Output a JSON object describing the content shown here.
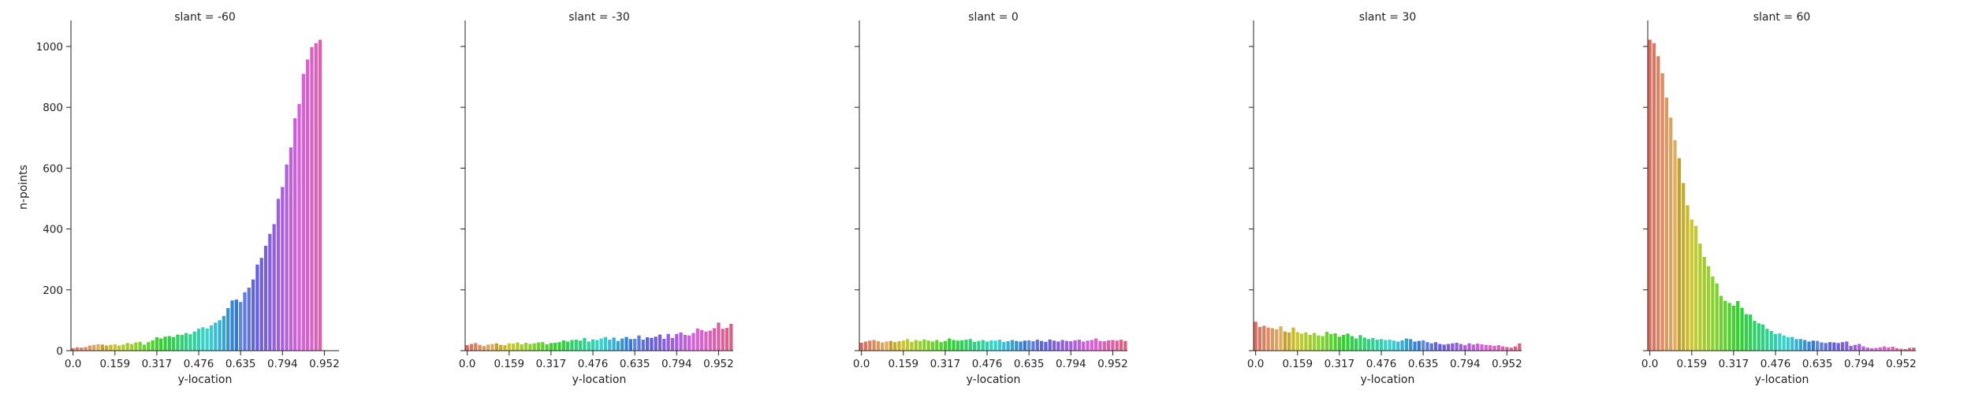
{
  "chart_data": {
    "type": "bar",
    "facet_variable": "slant",
    "ylabel": "n-points",
    "xlabel": "y-location",
    "xtick_labels": [
      "0.0",
      "0.159",
      "0.317",
      "0.476",
      "0.635",
      "0.794",
      "0.952"
    ],
    "ylim": [
      0,
      1075
    ],
    "yticks": [
      0,
      200,
      400,
      600,
      800,
      1000
    ],
    "shared_y": true,
    "grid": false,
    "bins": 64,
    "bin_width": 0.015873,
    "palette": "husl (seaborn default), hue follows x position",
    "panels": [
      {
        "title": "slant = -60",
        "values": [
          8,
          11,
          10,
          12,
          17,
          19,
          21,
          20,
          17,
          19,
          21,
          17,
          20,
          25,
          22,
          27,
          29,
          20,
          28,
          34,
          44,
          40,
          46,
          48,
          45,
          53,
          52,
          58,
          54,
          63,
          72,
          77,
          73,
          83,
          92,
          100,
          114,
          140,
          165,
          168,
          160,
          192,
          207,
          234,
          283,
          305,
          345,
          384,
          416,
          499,
          538,
          612,
          668,
          764,
          811,
          910,
          957,
          998,
          1011,
          1022,
          0,
          0,
          0,
          0
        ]
      },
      {
        "title": "slant = -30",
        "values": [
          18,
          22,
          25,
          19,
          15,
          20,
          22,
          24,
          19,
          18,
          24,
          23,
          27,
          21,
          26,
          22,
          24,
          27,
          28,
          21,
          25,
          26,
          28,
          34,
          30,
          35,
          36,
          33,
          42,
          30,
          37,
          35,
          40,
          45,
          36,
          43,
          32,
          40,
          45,
          38,
          39,
          50,
          36,
          44,
          42,
          46,
          53,
          39,
          55,
          42,
          55,
          60,
          52,
          50,
          58,
          73,
          68,
          63,
          66,
          74,
          92,
          72,
          75,
          88
        ]
      },
      {
        "title": "slant = 0",
        "values": [
          26,
          30,
          33,
          35,
          31,
          27,
          30,
          32,
          28,
          31,
          33,
          38,
          29,
          35,
          32,
          37,
          33,
          30,
          35,
          28,
          32,
          40,
          35,
          33,
          34,
          36,
          38,
          29,
          32,
          35,
          30,
          34,
          33,
          36,
          29,
          31,
          35,
          32,
          30,
          33,
          34,
          31,
          36,
          32,
          29,
          37,
          33,
          30,
          35,
          32,
          31,
          34,
          36,
          30,
          33,
          35,
          40,
          32,
          31,
          34,
          35,
          33,
          36,
          32
        ]
      },
      {
        "title": "slant = 30",
        "values": [
          95,
          78,
          82,
          76,
          74,
          70,
          80,
          63,
          60,
          76,
          61,
          56,
          60,
          52,
          58,
          50,
          48,
          62,
          55,
          57,
          46,
          52,
          56,
          48,
          40,
          51,
          43,
          38,
          42,
          36,
          38,
          35,
          36,
          33,
          30,
          34,
          40,
          38,
          30,
          32,
          34,
          28,
          24,
          28,
          22,
          20,
          22,
          24,
          26,
          22,
          18,
          24,
          20,
          23,
          21,
          19,
          18,
          16,
          18,
          14,
          12,
          10,
          14,
          24
        ]
      },
      {
        "title": "slant = 60",
        "values": [
          1022,
          1011,
          968,
          912,
          832,
          766,
          692,
          633,
          551,
          478,
          431,
          410,
          352,
          308,
          278,
          244,
          221,
          180,
          164,
          157,
          148,
          163,
          141,
          120,
          119,
          98,
          90,
          86,
          72,
          65,
          55,
          57,
          50,
          44,
          45,
          38,
          38,
          35,
          30,
          33,
          32,
          27,
          25,
          28,
          27,
          25,
          28,
          30,
          16,
          19,
          22,
          14,
          10,
          8,
          9,
          11,
          14,
          11,
          13,
          8,
          6,
          5,
          9,
          10
        ]
      }
    ]
  }
}
